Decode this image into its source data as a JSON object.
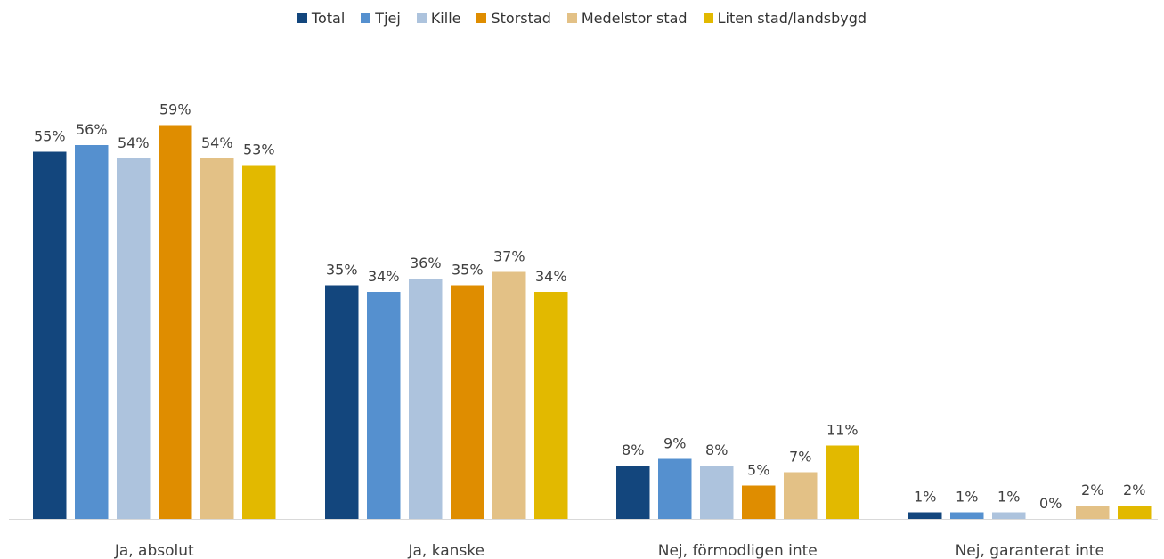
{
  "chart_data": {
    "type": "bar",
    "categories": [
      "Ja, absolut",
      "Ja, kanske",
      "Nej, förmodligen inte",
      "Nej, garanterat inte"
    ],
    "series": [
      {
        "name": "Total",
        "color": "#13467d",
        "values": [
          55,
          35,
          8,
          1
        ],
        "labels": [
          "55%",
          "35%",
          "8%",
          "1%"
        ]
      },
      {
        "name": "Tjej",
        "color": "#5590cf",
        "values": [
          56,
          34,
          9,
          1
        ],
        "labels": [
          "56%",
          "34%",
          "9%",
          "1%"
        ]
      },
      {
        "name": "Kille",
        "color": "#adc3dd",
        "values": [
          54,
          36,
          8,
          1
        ],
        "labels": [
          "54%",
          "36%",
          "8%",
          "1%"
        ]
      },
      {
        "name": "Storstad",
        "color": "#df8d00",
        "values": [
          59,
          35,
          5,
          0
        ],
        "labels": [
          "59%",
          "35%",
          "5%",
          "0%"
        ]
      },
      {
        "name": "Medelstor stad",
        "color": "#e3c186",
        "values": [
          54,
          37,
          7,
          2
        ],
        "labels": [
          "54%",
          "37%",
          "7%",
          "2%"
        ]
      },
      {
        "name": "Liten stad/landsbygd",
        "color": "#e2b900",
        "values": [
          53,
          34,
          11,
          2
        ],
        "labels": [
          "53%",
          "34%",
          "11%",
          "2%"
        ]
      }
    ],
    "ylim": [
      0,
      60
    ],
    "grid": false,
    "legend": "top",
    "title": "",
    "xlabel": "",
    "ylabel": ""
  }
}
